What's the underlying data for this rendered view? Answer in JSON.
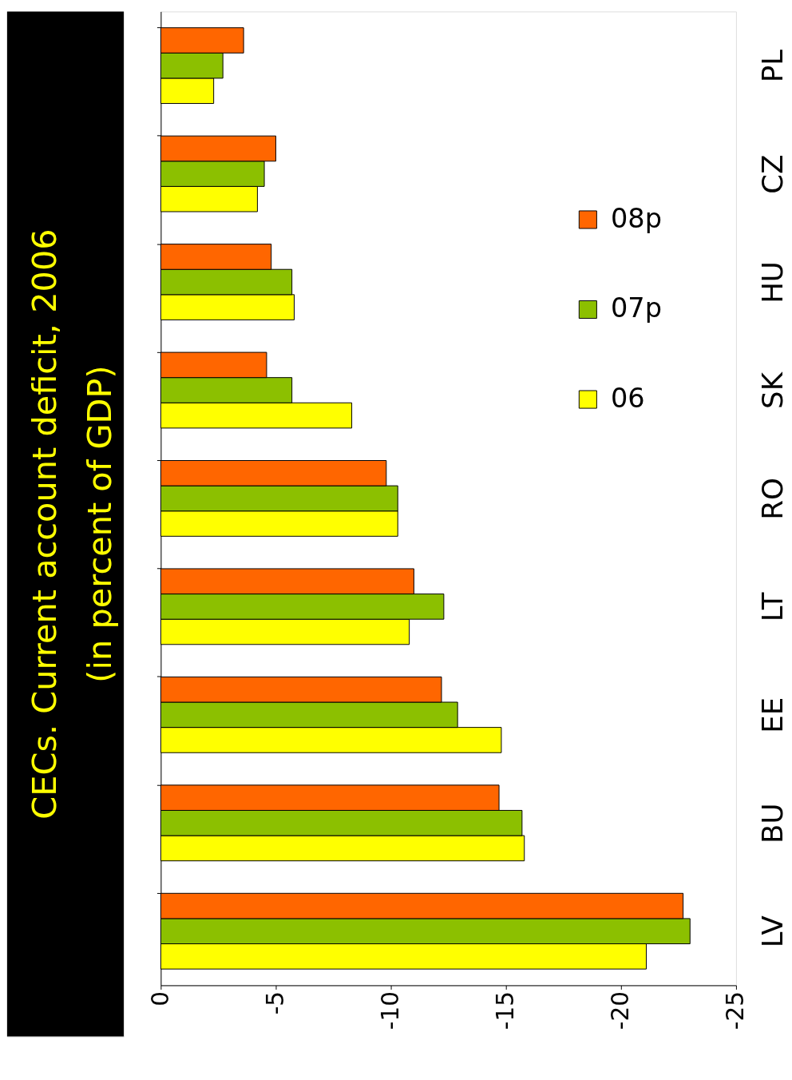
{
  "chart_data": {
    "type": "bar",
    "orientation": "horizontal",
    "title": "CECs. Current account deficit, 2006",
    "subtitle": "(in percent of GDP)",
    "categories": [
      "PL",
      "CZ",
      "HU",
      "SK",
      "RO",
      "LT",
      "EE",
      "BU",
      "LV"
    ],
    "series": [
      {
        "name": "06",
        "color": "#ffff00",
        "values": [
          -2.3,
          -4.2,
          -5.8,
          -8.3,
          -10.3,
          -10.8,
          -14.8,
          -15.8,
          -21.1
        ]
      },
      {
        "name": "07p",
        "color": "#8cc000",
        "values": [
          -2.7,
          -4.5,
          -5.7,
          -5.7,
          -10.3,
          -12.3,
          -12.9,
          -15.7,
          -23.0
        ]
      },
      {
        "name": "08p",
        "color": "#ff6600",
        "values": [
          -3.6,
          -5.0,
          -4.8,
          -4.6,
          -9.8,
          -11.0,
          -12.2,
          -14.7,
          -22.7
        ]
      }
    ],
    "xlim": [
      0,
      -25
    ],
    "xticks": [
      0,
      -5,
      -10,
      -15,
      -20,
      -25
    ],
    "grid": false,
    "legend": "right"
  }
}
